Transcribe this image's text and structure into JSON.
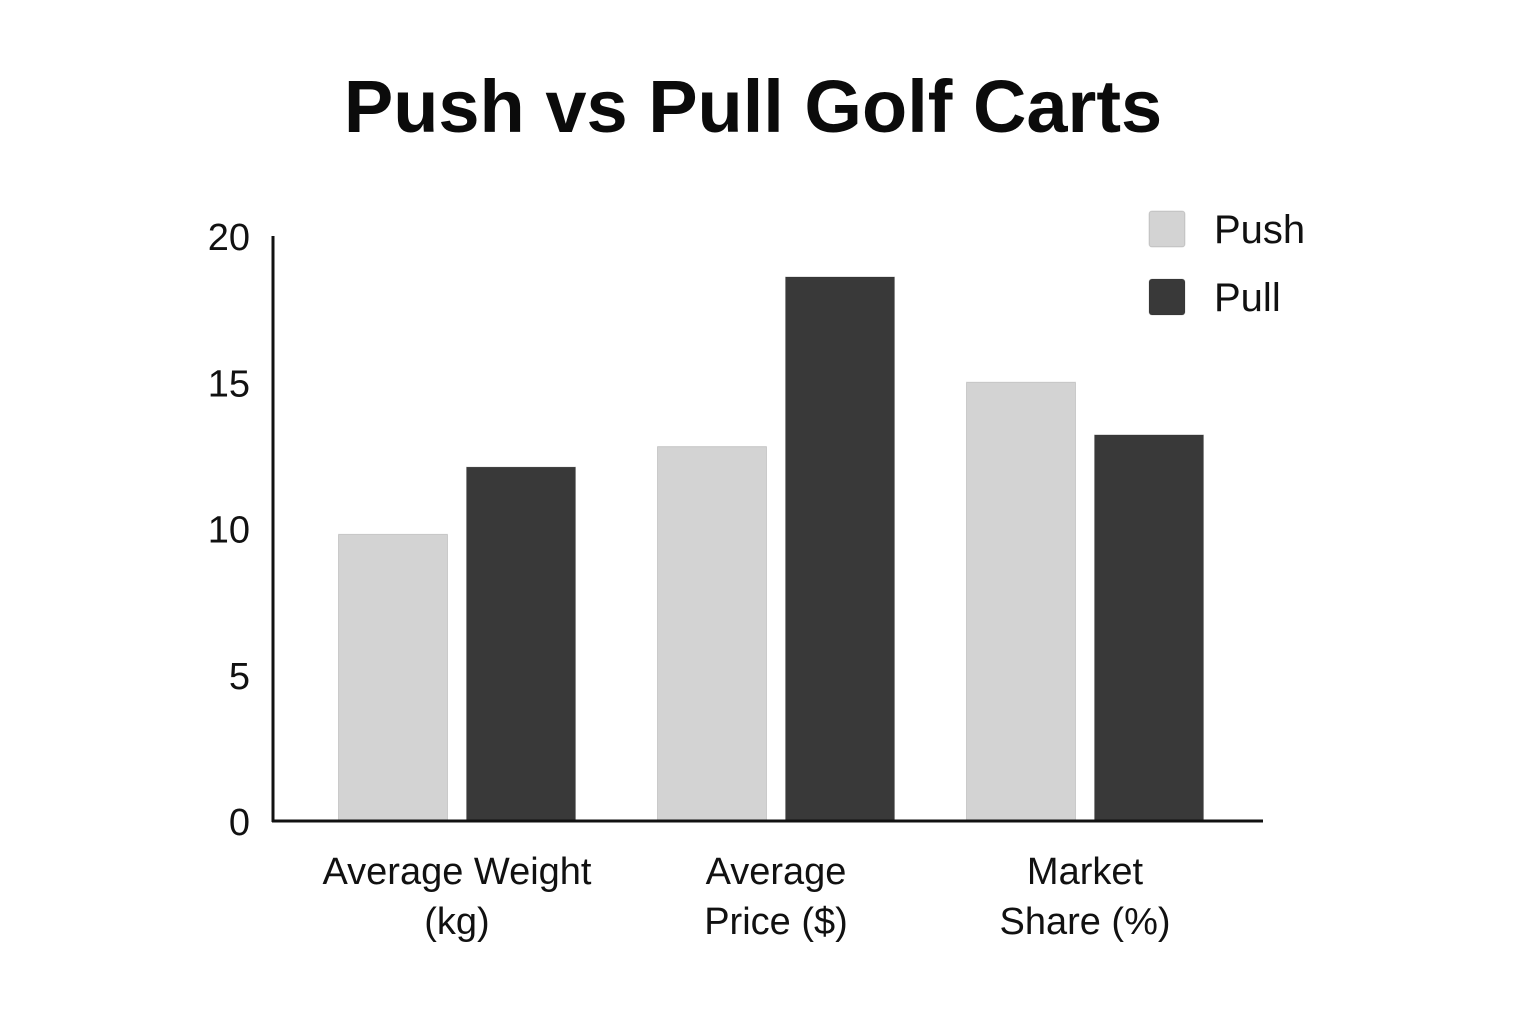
{
  "chart_data": {
    "type": "bar",
    "title": "Push vs Pull Golf Carts",
    "xlabel": "",
    "ylabel": "",
    "categories": [
      [
        "Average Weight",
        "(kg)"
      ],
      [
        "Average",
        "Price ($)"
      ],
      [
        "Market",
        "Share (%)"
      ]
    ],
    "series": [
      {
        "name": "Push",
        "color": "#d3d3d3",
        "values": [
          9.8,
          12.8,
          15.0
        ]
      },
      {
        "name": "Pull",
        "color": "#393939",
        "values": [
          12.1,
          18.6,
          13.2
        ]
      }
    ],
    "ylim": [
      0,
      20
    ],
    "yticks": [
      "0",
      "5",
      "10",
      "15",
      "20"
    ],
    "grid": false,
    "legend_position": "top-right"
  }
}
